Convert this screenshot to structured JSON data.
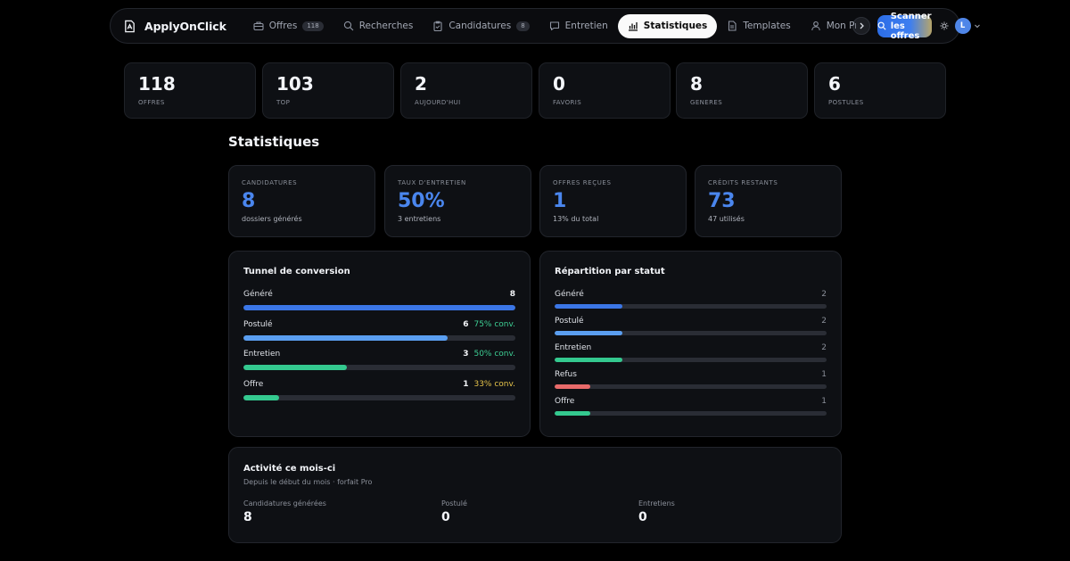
{
  "brand": {
    "name": "ApplyOnClick"
  },
  "nav": {
    "items": [
      {
        "label": "Offres",
        "badge": "118",
        "icon": "briefcase-icon"
      },
      {
        "label": "Recherches",
        "badge": null,
        "icon": "search-icon"
      },
      {
        "label": "Candidatures",
        "badge": "8",
        "icon": "clipboard-icon"
      },
      {
        "label": "Entretien",
        "badge": null,
        "icon": "chat-icon"
      },
      {
        "label": "Statistiques",
        "badge": null,
        "icon": "bar-chart-icon",
        "active": true
      },
      {
        "label": "Templates",
        "badge": null,
        "icon": "document-icon"
      },
      {
        "label": "Mon Pro",
        "badge": null,
        "icon": "user-icon"
      }
    ],
    "scan_label": "Scanner les offres",
    "avatar_initial": "L"
  },
  "counters": [
    {
      "value": "118",
      "label": "OFFRES"
    },
    {
      "value": "103",
      "label": "TOP"
    },
    {
      "value": "2",
      "label": "AUJOURD'HUI"
    },
    {
      "value": "0",
      "label": "FAVORIS"
    },
    {
      "value": "8",
      "label": "GENERES"
    },
    {
      "value": "6",
      "label": "POSTULES"
    }
  ],
  "section_title": "Statistiques",
  "kpis": [
    {
      "label": "CANDIDATURES",
      "value": "8",
      "sub": "dossiers générés"
    },
    {
      "label": "TAUX D'ENTRETIEN",
      "value": "50%",
      "sub": "3 entretiens"
    },
    {
      "label": "OFFRES REÇUES",
      "value": "1",
      "sub": "13% du total"
    },
    {
      "label": "CRÉDITS RESTANTS",
      "value": "73",
      "sub": "47 utilisés"
    }
  ],
  "funnel": {
    "title": "Tunnel de conversion",
    "rows": [
      {
        "label": "Généré",
        "count": "8",
        "conv": "",
        "fraction": 1.0,
        "color": "#3b76e6"
      },
      {
        "label": "Postulé",
        "count": "6",
        "conv": "75% conv.",
        "fraction": 0.75,
        "color": "#5a9ef0",
        "conv_color": "green"
      },
      {
        "label": "Entretien",
        "count": "3",
        "conv": "50% conv.",
        "fraction": 0.38,
        "color": "#34c98f",
        "conv_color": "green"
      },
      {
        "label": "Offre",
        "count": "1",
        "conv": "33% conv.",
        "fraction": 0.13,
        "color": "#34c98f",
        "conv_color": "yellow"
      }
    ]
  },
  "status": {
    "title": "Répartition par statut",
    "rows": [
      {
        "label": "Généré",
        "count": "2",
        "fraction": 0.25,
        "color": "#3b76e6"
      },
      {
        "label": "Postulé",
        "count": "2",
        "fraction": 0.25,
        "color": "#5a9ef0"
      },
      {
        "label": "Entretien",
        "count": "2",
        "fraction": 0.25,
        "color": "#34c98f"
      },
      {
        "label": "Refus",
        "count": "1",
        "fraction": 0.13,
        "color": "#e86a6a"
      },
      {
        "label": "Offre",
        "count": "1",
        "fraction": 0.13,
        "color": "#34c98f"
      }
    ]
  },
  "activity": {
    "title": "Activité ce mois-ci",
    "subtitle": "Depuis le début du mois · forfait Pro",
    "cols": [
      {
        "label": "Candidatures générées",
        "value": "8"
      },
      {
        "label": "Postulé",
        "value": "0"
      },
      {
        "label": "Entretiens",
        "value": "0"
      }
    ]
  }
}
